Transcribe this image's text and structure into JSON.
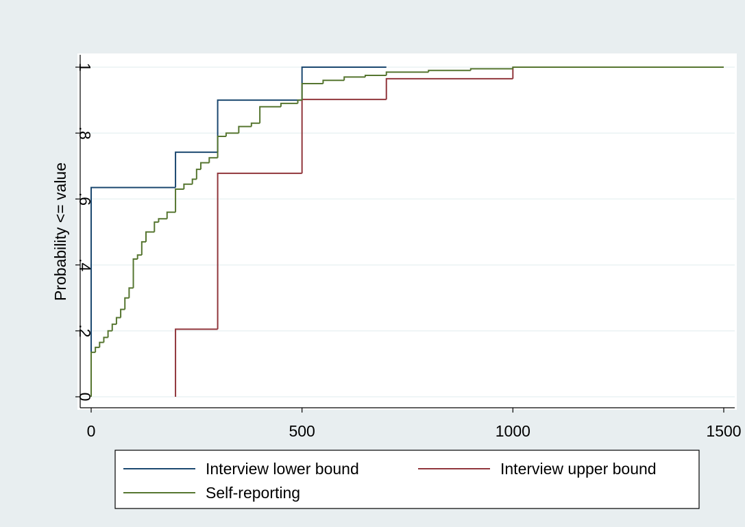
{
  "chart_data": {
    "type": "step",
    "ylabel": "Probability <= value",
    "xlim": [
      0,
      1500
    ],
    "xticks": [
      0,
      500,
      1000,
      1500
    ],
    "ylim": [
      0,
      1
    ],
    "yticks": [
      0,
      {
        "value": 0.2,
        "label": ".2"
      },
      {
        "value": 0.4,
        "label": ".4"
      },
      {
        "value": 0.6,
        "label": ".6"
      },
      {
        "value": 0.8,
        "label": ".8"
      },
      1
    ],
    "grid": true,
    "legend": "bottom",
    "series": [
      {
        "name": "Interview lower bound",
        "color": "#1a476f",
        "x": [
          0,
          0,
          200,
          300,
          500,
          700
        ],
        "values": [
          0,
          0.635,
          0.742,
          0.9,
          1,
          1
        ]
      },
      {
        "name": "Interview upper bound",
        "color": "#90353b",
        "x": [
          200,
          200,
          300,
          500,
          700,
          1000
        ],
        "values": [
          0,
          0.205,
          0.678,
          0.902,
          0.965,
          1
        ]
      },
      {
        "name": "Self-reporting",
        "color": "#55752f",
        "x": [
          0,
          0,
          10,
          20,
          30,
          40,
          50,
          60,
          70,
          80,
          90,
          100,
          110,
          120,
          130,
          150,
          160,
          180,
          200,
          220,
          240,
          250,
          260,
          280,
          300,
          320,
          350,
          380,
          400,
          450,
          490,
          500,
          550,
          600,
          650,
          700,
          800,
          900,
          1000,
          1500
        ],
        "values": [
          0,
          0.135,
          0.15,
          0.165,
          0.18,
          0.2,
          0.22,
          0.24,
          0.265,
          0.3,
          0.33,
          0.418,
          0.43,
          0.47,
          0.5,
          0.53,
          0.54,
          0.56,
          0.63,
          0.645,
          0.66,
          0.69,
          0.71,
          0.725,
          0.79,
          0.8,
          0.82,
          0.83,
          0.88,
          0.89,
          0.9,
          0.95,
          0.96,
          0.97,
          0.975,
          0.985,
          0.99,
          0.995,
          1,
          1
        ]
      }
    ]
  }
}
